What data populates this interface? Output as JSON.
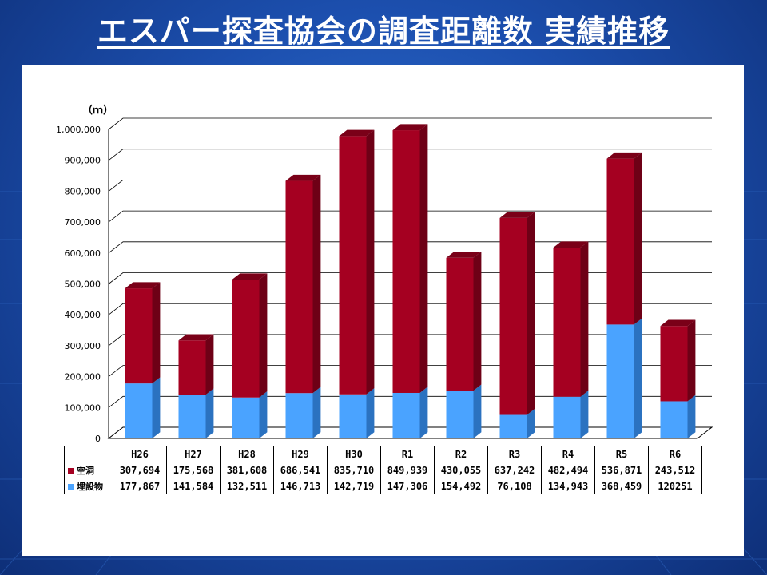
{
  "title": "エスパー探査協会の調査距離数 実績推移",
  "chart_data": {
    "type": "bar",
    "stacked": true,
    "categories": [
      "H26",
      "H27",
      "H28",
      "H29",
      "H30",
      "R1",
      "R2",
      "R3",
      "R4",
      "R5",
      "R6"
    ],
    "series": [
      {
        "name": "埋設物",
        "color": "#4aa3ff",
        "side": "#2b72c0",
        "top": "#7cc0ff",
        "values": [
          177867,
          141584,
          132511,
          146713,
          142719,
          147306,
          154492,
          76108,
          134943,
          368459,
          120251
        ],
        "labels": [
          "177,867",
          "141,584",
          "132,511",
          "146,713",
          "142,719",
          "147,306",
          "154,492",
          "76,108",
          "134,943",
          "368,459",
          "120251"
        ]
      },
      {
        "name": "空洞",
        "color": "#a50021",
        "side": "#6e0016",
        "top": "#7a0018",
        "values": [
          307694,
          175568,
          381608,
          686541,
          835710,
          849939,
          430055,
          637242,
          482494,
          536871,
          243512
        ],
        "labels": [
          "307,694",
          "175,568",
          "381,608",
          "686,541",
          "835,710",
          "849,939",
          "430,055",
          "637,242",
          "482,494",
          "536,871",
          "243,512"
        ]
      }
    ],
    "ylabel_unit": "（ｍ）",
    "ylim": [
      0,
      1000000
    ],
    "yticks": [
      0,
      100000,
      200000,
      300000,
      400000,
      500000,
      600000,
      700000,
      800000,
      900000,
      1000000
    ],
    "ytick_labels": [
      "0",
      "100,000",
      "200,000",
      "300,000",
      "400,000",
      "500,000",
      "600,000",
      "700,000",
      "800,000",
      "900,000",
      "1,000,000"
    ],
    "grid": true,
    "data_table": true
  }
}
